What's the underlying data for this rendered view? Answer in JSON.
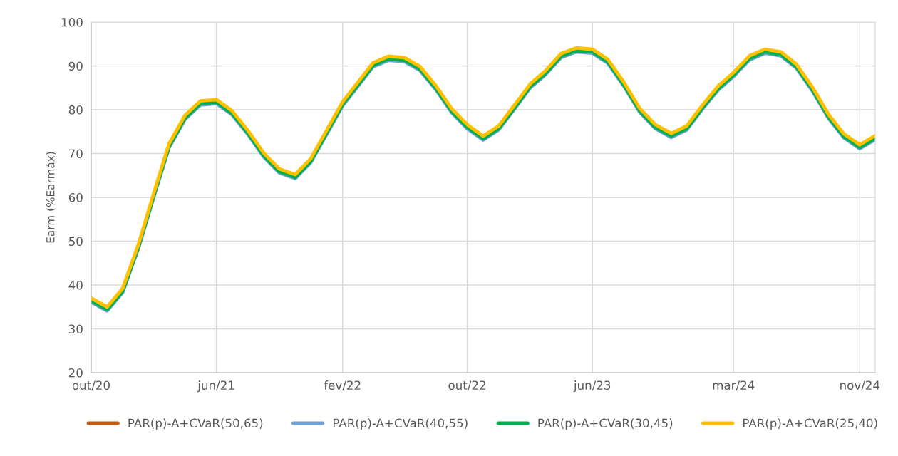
{
  "chart_data": {
    "type": "line",
    "ylabel": "Earm (%Earmáx)",
    "x": [
      "2020-10",
      "2020-11",
      "2020-12",
      "2021-01",
      "2021-02",
      "2021-03",
      "2021-04",
      "2021-05",
      "2021-06",
      "2021-07",
      "2021-08",
      "2021-09",
      "2021-10",
      "2021-11",
      "2021-12",
      "2022-01",
      "2022-02",
      "2022-03",
      "2022-04",
      "2022-05",
      "2022-06",
      "2022-07",
      "2022-08",
      "2022-09",
      "2022-10",
      "2022-11",
      "2022-12",
      "2023-01",
      "2023-02",
      "2023-03",
      "2023-04",
      "2023-05",
      "2023-06",
      "2023-07",
      "2023-08",
      "2023-09",
      "2023-10",
      "2023-11",
      "2023-12",
      "2024-01",
      "2024-02",
      "2024-03",
      "2024-04",
      "2024-05",
      "2024-06",
      "2024-07",
      "2024-08",
      "2024-09",
      "2024-10",
      "2024-11",
      "2024-12"
    ],
    "series": [
      {
        "name": "PAR(p)-A+CVaR(50,65)",
        "color": "#c55a11",
        "values": [
          null,
          null,
          null,
          null,
          null,
          null,
          null,
          null,
          null,
          null,
          null,
          null,
          null,
          null,
          null,
          null,
          null,
          null,
          null,
          null,
          null,
          null,
          null,
          null,
          null,
          null,
          null,
          null,
          null,
          null,
          null,
          null,
          null,
          null,
          null,
          null,
          null,
          null,
          null,
          null,
          null,
          null,
          null,
          null,
          null,
          null,
          null,
          null,
          null,
          null,
          null
        ]
      },
      {
        "name": "PAR(p)-A+CVaR(40,55)",
        "color": "#70a0d4",
        "values": [
          36.1,
          34.1,
          38.3,
          48.5,
          60.7,
          71.3,
          77.8,
          81.1,
          81.4,
          78.9,
          74.4,
          69.2,
          65.6,
          64.3,
          67.9,
          74.4,
          80.9,
          85.1,
          89.8,
          91.3,
          91,
          89,
          84.6,
          79.3,
          75.7,
          73.1,
          75.4,
          80.2,
          85.1,
          87.9,
          91.9,
          93.2,
          92.9,
          90.6,
          85.4,
          79.4,
          75.7,
          73.7,
          75.4,
          80.2,
          84.6,
          87.6,
          91.4,
          92.9,
          92.3,
          89.5,
          84.3,
          78.1,
          73.6,
          71.1,
          73.2
        ]
      },
      {
        "name": "PAR(p)-A+CVaR(30,45)",
        "color": "#00b050",
        "values": [
          36.4,
          34.4,
          38.6,
          48.8,
          61,
          71.6,
          78.1,
          81.4,
          81.7,
          79.2,
          74.7,
          69.5,
          65.9,
          64.6,
          68.2,
          74.7,
          81.2,
          85.4,
          90.1,
          91.6,
          91.3,
          89.3,
          84.9,
          79.6,
          76,
          73.4,
          75.7,
          80.5,
          85.4,
          88.2,
          92.2,
          93.5,
          93.2,
          90.9,
          85.7,
          79.7,
          76,
          74,
          75.7,
          80.5,
          84.9,
          87.9,
          91.7,
          93.2,
          92.6,
          89.8,
          84.6,
          78.4,
          73.9,
          71.4,
          73.5
        ]
      },
      {
        "name": "PAR(p)-A+CVaR(25,40)",
        "color": "#ffc000",
        "values": [
          37,
          35,
          39.2,
          49.4,
          61.6,
          72.2,
          78.7,
          82,
          82.3,
          79.8,
          75.3,
          70.1,
          66.5,
          65.2,
          68.8,
          75.3,
          81.8,
          86,
          90.7,
          92.2,
          91.9,
          89.9,
          85.5,
          80.2,
          76.6,
          74,
          76.3,
          81.1,
          86,
          88.8,
          92.8,
          94.1,
          93.8,
          91.5,
          86.3,
          80.3,
          76.6,
          74.6,
          76.3,
          81.1,
          85.5,
          88.5,
          92.3,
          93.8,
          93.2,
          90.4,
          85.2,
          79,
          74.5,
          72,
          74.1
        ]
      }
    ],
    "xlim": [
      "2020-10",
      "2024-12"
    ],
    "xticks": [
      {
        "value": "2020-10",
        "label": "out/20"
      },
      {
        "value": "2021-06",
        "label": "jun/21"
      },
      {
        "value": "2022-02",
        "label": "fev/22"
      },
      {
        "value": "2022-10",
        "label": "out/22"
      },
      {
        "value": "2023-06",
        "label": "jun/23"
      },
      {
        "value": "2024-03",
        "label": "mar/24"
      },
      {
        "value": "2024-11",
        "label": "nov/24"
      }
    ],
    "ylim": [
      20,
      100
    ],
    "yticks": [
      20,
      30,
      40,
      50,
      60,
      70,
      80,
      90,
      100
    ],
    "grid": true,
    "legend": "bottom",
    "line_style": "solid",
    "marker": "none"
  }
}
